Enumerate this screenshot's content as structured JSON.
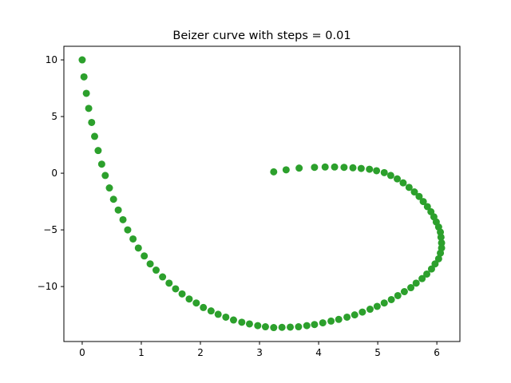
{
  "chart_data": {
    "type": "scatter",
    "title": "Beizer curve with steps = 0.01",
    "xlabel": "",
    "ylabel": "",
    "xlim": [
      -0.31,
      6.39
    ],
    "ylim": [
      -14.85,
      11.2
    ],
    "xticks": [
      0,
      1,
      2,
      3,
      4,
      5,
      6
    ],
    "yticks": [
      -10,
      -5,
      0,
      5,
      10
    ],
    "grid": false,
    "marker_color": "#2ca02c",
    "series": [
      {
        "x": [
          0.0,
          0.03,
          0.07,
          0.11,
          0.16,
          0.21,
          0.27,
          0.33,
          0.39,
          0.46,
          0.53,
          0.61,
          0.69,
          0.77,
          0.86,
          0.95,
          1.05,
          1.15,
          1.25,
          1.36,
          1.47,
          1.58,
          1.69,
          1.81,
          1.93,
          2.05,
          2.18,
          2.3,
          2.43,
          2.56,
          2.7,
          2.83,
          2.97,
          3.1,
          3.24,
          3.38,
          3.52,
          3.66,
          3.8,
          3.93,
          4.07,
          4.21,
          4.34,
          4.48,
          4.61,
          4.74,
          4.87,
          4.99,
          5.11,
          5.23,
          5.34,
          5.45,
          5.56,
          5.65,
          5.75,
          5.83,
          5.91,
          5.97,
          6.03,
          6.06,
          6.08,
          6.08,
          6.07,
          6.06,
          6.03,
          5.99,
          5.95,
          5.9,
          5.84,
          5.77,
          5.7,
          5.62,
          5.53,
          5.43,
          5.33,
          5.22,
          5.11,
          4.98,
          4.86,
          4.72,
          4.58,
          4.43,
          4.27,
          4.11,
          3.93,
          3.67,
          3.45,
          3.24
        ],
        "y": [
          10.0,
          8.5,
          7.05,
          5.72,
          4.48,
          3.25,
          2.0,
          0.8,
          -0.2,
          -1.3,
          -2.3,
          -3.25,
          -4.1,
          -5.0,
          -5.8,
          -6.6,
          -7.3,
          -8.0,
          -8.55,
          -9.15,
          -9.7,
          -10.2,
          -10.65,
          -11.1,
          -11.45,
          -11.85,
          -12.15,
          -12.45,
          -12.7,
          -12.95,
          -13.15,
          -13.3,
          -13.45,
          -13.55,
          -13.62,
          -13.6,
          -13.58,
          -13.55,
          -13.45,
          -13.35,
          -13.2,
          -13.05,
          -12.9,
          -12.7,
          -12.5,
          -12.25,
          -12.0,
          -11.75,
          -11.45,
          -11.15,
          -10.8,
          -10.45,
          -10.1,
          -9.7,
          -9.3,
          -8.9,
          -8.45,
          -8.0,
          -7.55,
          -7.05,
          -6.6,
          -6.15,
          -5.65,
          -5.2,
          -4.75,
          -4.3,
          -3.85,
          -3.4,
          -2.95,
          -2.5,
          -2.05,
          -1.65,
          -1.25,
          -0.85,
          -0.5,
          -0.2,
          0.05,
          0.22,
          0.35,
          0.42,
          0.48,
          0.52,
          0.55,
          0.55,
          0.52,
          0.45,
          0.3,
          0.12
        ]
      }
    ]
  }
}
